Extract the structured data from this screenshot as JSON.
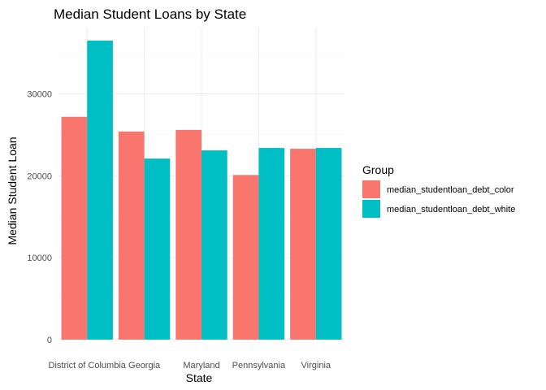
{
  "chart_data": {
    "type": "bar",
    "title": "Median Student Loans by State",
    "xlabel": "State",
    "ylabel": "Median Student Loan",
    "categories": [
      "District of Columbia",
      "Georgia",
      "Maryland",
      "Pennsylvania",
      "Virginia"
    ],
    "series": [
      {
        "name": "median_studentloan_debt_color",
        "color": "#F8766D",
        "values": [
          27200,
          25400,
          25600,
          20100,
          23300
        ]
      },
      {
        "name": "median_studentloan_debt_white",
        "color": "#00BFC4",
        "values": [
          36500,
          22100,
          23100,
          23400,
          23400
        ]
      }
    ],
    "yticks": [
      0,
      10000,
      20000,
      30000
    ],
    "ylim": [
      0,
      37000
    ],
    "grid": true,
    "legend": {
      "title": "Group",
      "position": "right"
    }
  }
}
